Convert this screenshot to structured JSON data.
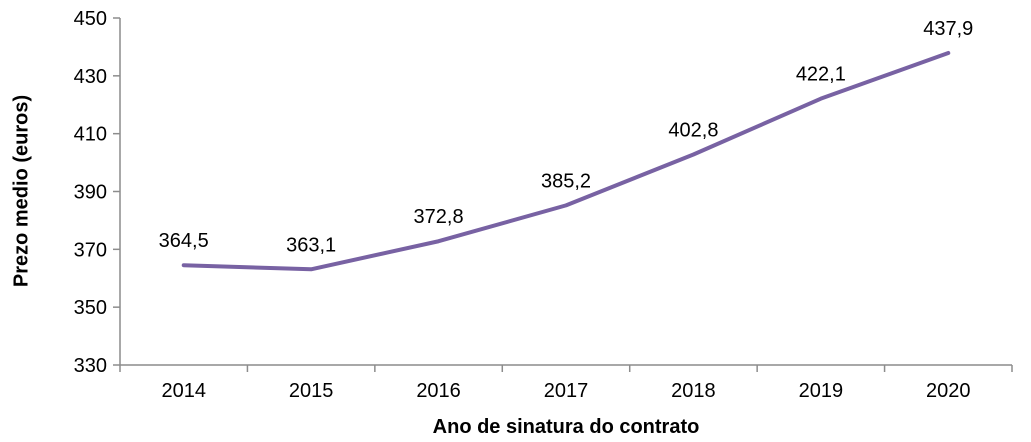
{
  "chart_data": {
    "type": "line",
    "title": "",
    "categories": [
      "2014",
      "2015",
      "2016",
      "2017",
      "2018",
      "2019",
      "2020"
    ],
    "values": [
      364.5,
      363.1,
      372.8,
      385.2,
      402.8,
      422.1,
      437.9
    ],
    "value_labels": [
      "364,5",
      "363,1",
      "372,8",
      "385,2",
      "402,8",
      "422,1",
      "437,9"
    ],
    "xlabel": "Ano de sinatura do contrato",
    "ylabel": "Prezo medio (euros)",
    "ylim": [
      330,
      450
    ],
    "yticks": [
      330,
      350,
      370,
      390,
      410,
      430,
      450
    ],
    "ytick_labels": [
      "330",
      "350",
      "370",
      "390",
      "410",
      "430",
      "450"
    ],
    "grid": false,
    "legend": "none",
    "line_color": "#7862A3",
    "axis_color": "#8C8C8C",
    "text_color": "#000000"
  }
}
